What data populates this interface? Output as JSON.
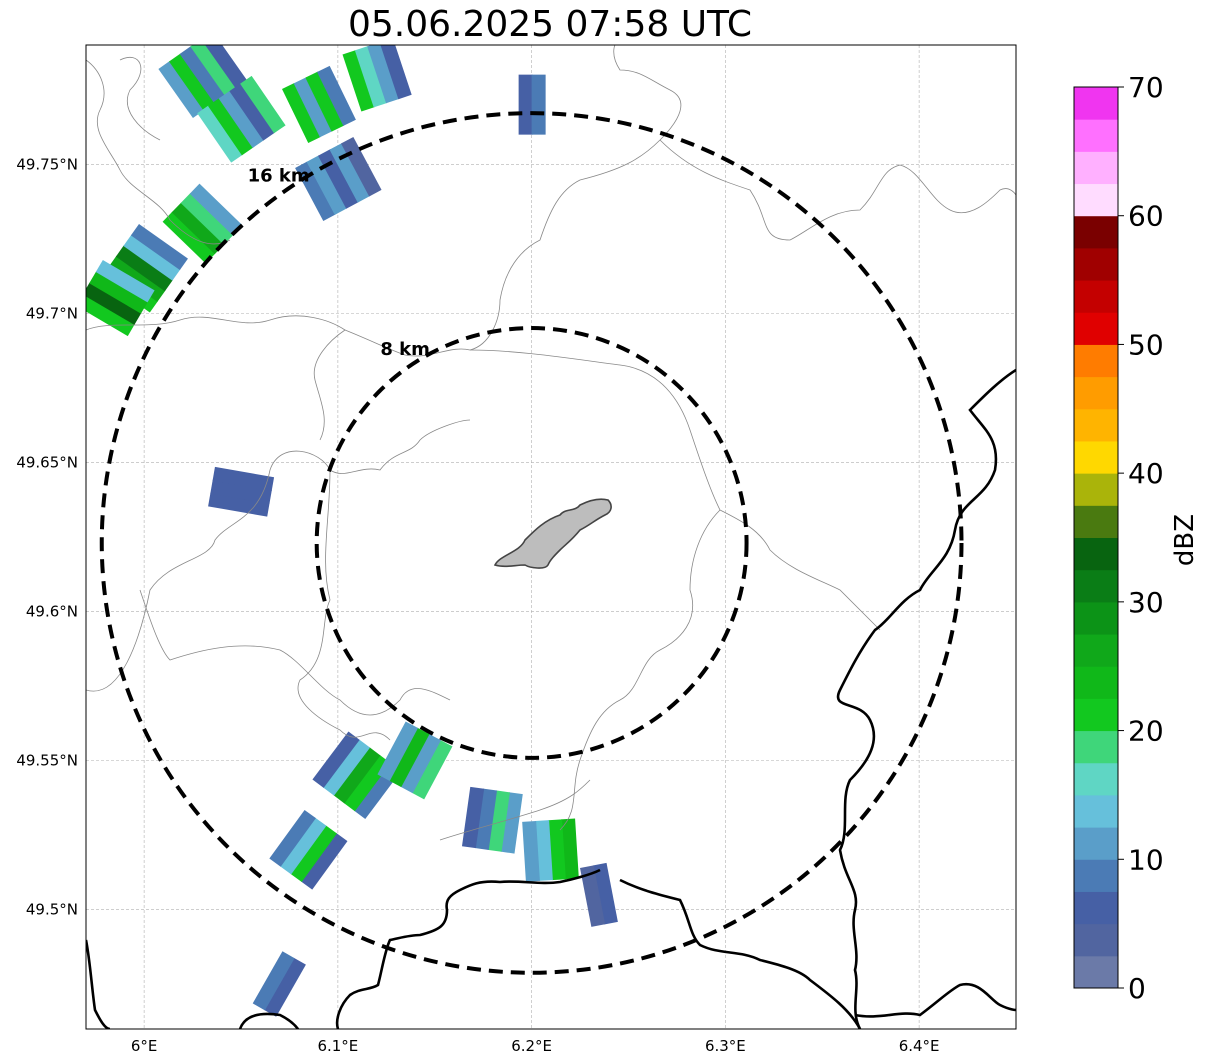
{
  "title": "05.06.2025 07:58 UTC",
  "map": {
    "lon_ticks": [
      {
        "value": 6.0,
        "label": "6°E"
      },
      {
        "value": 6.1,
        "label": "6.1°E"
      },
      {
        "value": 6.2,
        "label": "6.2°E"
      },
      {
        "value": 6.3,
        "label": "6.3°E"
      },
      {
        "value": 6.4,
        "label": "6.4°E"
      }
    ],
    "lat_ticks": [
      {
        "value": 49.5,
        "label": "49.5°N"
      },
      {
        "value": 49.55,
        "label": "49.55°N"
      },
      {
        "value": 49.6,
        "label": "49.6°N"
      },
      {
        "value": 49.65,
        "label": "49.65°N"
      },
      {
        "value": 49.7,
        "label": "49.7°N"
      },
      {
        "value": 49.75,
        "label": "49.75°N"
      }
    ],
    "lon_range": [
      5.97,
      6.45
    ],
    "lat_range": [
      49.46,
      49.79
    ],
    "range_rings": [
      {
        "label": "8 km",
        "radius_km": 8
      },
      {
        "label": "16 km",
        "radius_km": 16
      }
    ],
    "radar_center": {
      "lon": 6.2,
      "lat": 49.623
    },
    "grid": true
  },
  "colorbar": {
    "label": "dBZ",
    "ticks": [
      "0",
      "10",
      "20",
      "30",
      "40",
      "50",
      "60",
      "70"
    ],
    "min": 0,
    "max": 70,
    "step": 2.5,
    "colors": [
      "#6b7aa8",
      "#5165a0",
      "#4660a5",
      "#4b7bb5",
      "#5a9ec9",
      "#66c0db",
      "#5fd6c4",
      "#3fd67a",
      "#12c81f",
      "#10b819",
      "#10a81a",
      "#0c9317",
      "#0a7d16",
      "#086410",
      "#4a7a10",
      "#aab40a",
      "#ffd800",
      "#ffb400",
      "#ff9c00",
      "#ff7c00",
      "#e00000",
      "#c40000",
      "#a00000",
      "#7a0000",
      "#ffdcff",
      "#ffb0ff",
      "#ff70ff",
      "#f035f0"
    ]
  },
  "precip_cells": [
    {
      "lon": 6.03,
      "lat": 49.78,
      "dbz": [
        12,
        20,
        8,
        18,
        5
      ]
    },
    {
      "lon": 6.05,
      "lat": 49.765,
      "dbz": [
        15,
        22,
        10,
        6,
        18
      ]
    },
    {
      "lon": 6.09,
      "lat": 49.77,
      "dbz": [
        20,
        12,
        22,
        8
      ]
    },
    {
      "lon": 6.12,
      "lat": 49.78,
      "dbz": [
        22,
        15,
        10,
        5
      ]
    },
    {
      "lon": 6.1,
      "lat": 49.745,
      "dbz": [
        8,
        12,
        5,
        10,
        3
      ]
    },
    {
      "lon": 6.03,
      "lat": 49.73,
      "dbz": [
        22,
        26,
        18,
        12
      ]
    },
    {
      "lon": 6.0,
      "lat": 49.715,
      "dbz": [
        20,
        26,
        30,
        14,
        8
      ]
    },
    {
      "lon": 5.985,
      "lat": 49.705,
      "dbz": [
        22,
        33,
        24,
        14
      ]
    },
    {
      "lon": 6.05,
      "lat": 49.64,
      "dbz": [
        6,
        5,
        7
      ]
    },
    {
      "lon": 6.2,
      "lat": 49.77,
      "dbz": [
        6,
        8
      ]
    },
    {
      "lon": 6.11,
      "lat": 49.545,
      "dbz": [
        8,
        22,
        26,
        14,
        6
      ]
    },
    {
      "lon": 6.14,
      "lat": 49.55,
      "dbz": [
        18,
        12,
        24,
        10
      ]
    },
    {
      "lon": 6.085,
      "lat": 49.52,
      "dbz": [
        6,
        20,
        14,
        8
      ]
    },
    {
      "lon": 6.18,
      "lat": 49.53,
      "dbz": [
        12,
        18,
        8,
        6
      ]
    },
    {
      "lon": 6.21,
      "lat": 49.52,
      "dbz": [
        24,
        20,
        14,
        10
      ]
    },
    {
      "lon": 6.235,
      "lat": 49.505,
      "dbz": [
        6,
        4
      ]
    },
    {
      "lon": 6.07,
      "lat": 49.475,
      "dbz": [
        6,
        8
      ]
    }
  ]
}
